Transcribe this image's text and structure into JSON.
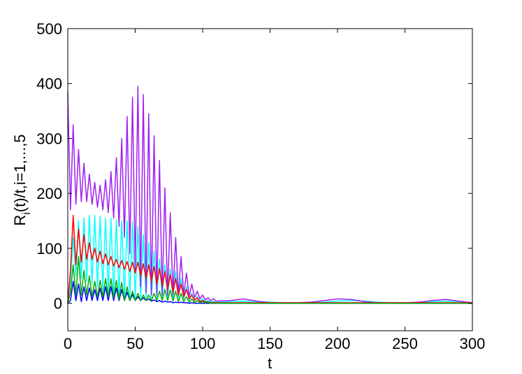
{
  "chart_data": {
    "type": "line",
    "xlabel": "t",
    "ylabel": {
      "main": "R",
      "sub": "i",
      "rest": "(t)/t,i=1,...,5"
    },
    "x": [
      0,
      2,
      4,
      6,
      8,
      10,
      12,
      14,
      16,
      18,
      20,
      22,
      24,
      26,
      28,
      30,
      32,
      34,
      36,
      38,
      40,
      42,
      44,
      46,
      48,
      50,
      52,
      54,
      56,
      58,
      60,
      62,
      64,
      66,
      68,
      70,
      72,
      74,
      76,
      78,
      80,
      82,
      84,
      86,
      88,
      90,
      92,
      94,
      96,
      98,
      100,
      102,
      104,
      106,
      108,
      110,
      120,
      130,
      140,
      150,
      160,
      170,
      180,
      190,
      200,
      210,
      220,
      230,
      240,
      250,
      260,
      270,
      280,
      290,
      300
    ],
    "series": [
      {
        "color": "#0000ff",
        "values": [
          0,
          5,
          40,
          5,
          35,
          3,
          30,
          5,
          28,
          5,
          25,
          5,
          28,
          5,
          30,
          5,
          30,
          5,
          28,
          5,
          25,
          5,
          20,
          5,
          16,
          5,
          12,
          5,
          10,
          5,
          8,
          4,
          6,
          3,
          5,
          2,
          4,
          2,
          3,
          1,
          2,
          1,
          2,
          1,
          1,
          0,
          1,
          0,
          0,
          0,
          0,
          0,
          0,
          0,
          0,
          0,
          0,
          0,
          0,
          0,
          0,
          0,
          0,
          0,
          0,
          0,
          0,
          0,
          0,
          0,
          0,
          0,
          0,
          0,
          0
        ]
      },
      {
        "color": "#00ffff",
        "values": [
          0,
          40,
          120,
          50,
          150,
          45,
          155,
          40,
          160,
          35,
          160,
          30,
          158,
          25,
          155,
          20,
          155,
          15,
          152,
          12,
          150,
          10,
          150,
          10,
          148,
          10,
          140,
          10,
          125,
          10,
          110,
          10,
          95,
          10,
          80,
          10,
          70,
          10,
          62,
          10,
          58,
          10,
          45,
          8,
          30,
          6,
          18,
          5,
          12,
          4,
          8,
          3,
          5,
          3,
          3,
          2,
          3,
          4,
          3,
          2,
          1,
          1,
          1,
          2,
          4,
          5,
          4,
          2,
          1,
          1,
          1,
          3,
          4,
          3,
          1
        ]
      },
      {
        "color": "#a020f0",
        "values": [
          385,
          170,
          325,
          180,
          280,
          185,
          255,
          185,
          235,
          180,
          220,
          175,
          215,
          170,
          225,
          165,
          240,
          155,
          265,
          140,
          300,
          120,
          340,
          90,
          375,
          60,
          395,
          30,
          380,
          20,
          345,
          15,
          305,
          15,
          260,
          15,
          210,
          15,
          165,
          15,
          120,
          15,
          85,
          15,
          55,
          12,
          35,
          10,
          22,
          8,
          15,
          6,
          10,
          5,
          8,
          4,
          5,
          8,
          4,
          1,
          1,
          1,
          2,
          5,
          8,
          7,
          3,
          1,
          1,
          1,
          2,
          5,
          7,
          4,
          1
        ]
      },
      {
        "color": "#ff0000",
        "values": [
          0,
          60,
          160,
          70,
          135,
          75,
          125,
          80,
          110,
          80,
          100,
          75,
          95,
          72,
          90,
          70,
          85,
          68,
          80,
          65,
          78,
          62,
          76,
          58,
          75,
          55,
          75,
          50,
          72,
          45,
          70,
          40,
          67,
          35,
          63,
          30,
          58,
          25,
          52,
          20,
          45,
          15,
          35,
          12,
          25,
          8,
          15,
          5,
          10,
          3,
          5,
          2,
          3,
          1,
          2,
          1,
          1,
          1,
          1,
          1,
          1,
          1,
          1,
          1,
          1,
          1,
          1,
          1,
          1,
          1,
          1,
          1,
          1,
          1,
          1
        ]
      },
      {
        "color": "#00aa00",
        "values": [
          0,
          20,
          70,
          15,
          85,
          15,
          60,
          15,
          50,
          12,
          40,
          12,
          42,
          12,
          45,
          12,
          45,
          10,
          42,
          8,
          38,
          5,
          30,
          5,
          22,
          5,
          18,
          5,
          15,
          5,
          15,
          5,
          18,
          5,
          22,
          5,
          25,
          5,
          24,
          4,
          22,
          3,
          18,
          3,
          12,
          2,
          8,
          1,
          5,
          1,
          3,
          1,
          2,
          0,
          1,
          0,
          0,
          0,
          0,
          0,
          0,
          0,
          0,
          0,
          0,
          0,
          0,
          0,
          0,
          0,
          0,
          0,
          0,
          0,
          0
        ]
      }
    ],
    "xlim": [
      0,
      300
    ],
    "ylim": [
      -50,
      500
    ],
    "xticks": [
      0,
      50,
      100,
      150,
      200,
      250,
      300
    ],
    "yticks": [
      0,
      100,
      200,
      300,
      400,
      500
    ]
  }
}
